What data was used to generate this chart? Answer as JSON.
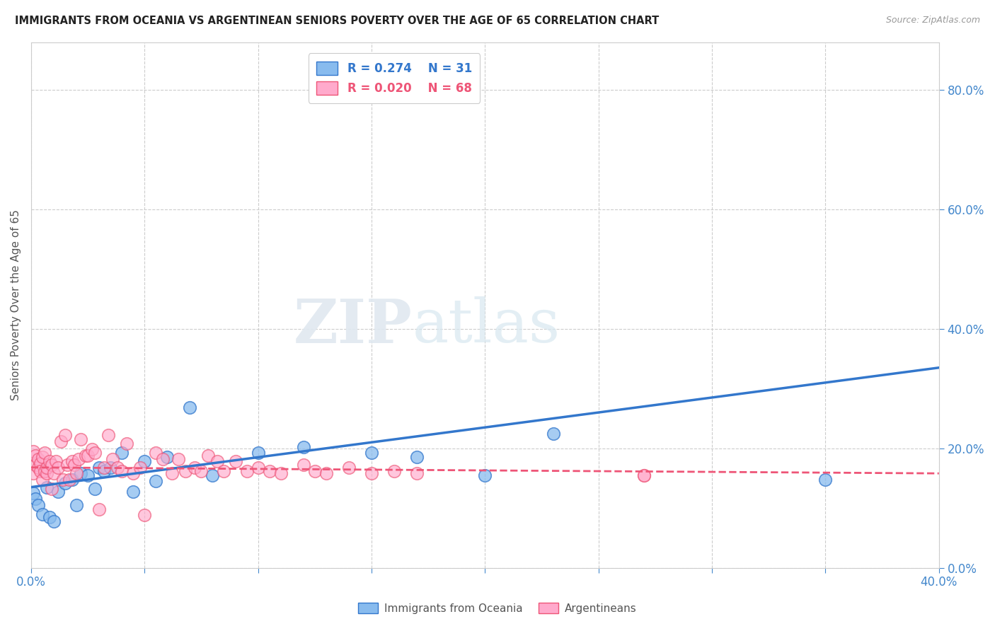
{
  "title": "IMMIGRANTS FROM OCEANIA VS ARGENTINEAN SENIORS POVERTY OVER THE AGE OF 65 CORRELATION CHART",
  "source": "Source: ZipAtlas.com",
  "ylabel": "Seniors Poverty Over the Age of 65",
  "xlim": [
    0.0,
    0.4
  ],
  "ylim": [
    0.0,
    0.88
  ],
  "yticks": [
    0.0,
    0.2,
    0.4,
    0.6,
    0.8
  ],
  "r1": 0.274,
  "n1": 31,
  "r2": 0.02,
  "n2": 68,
  "color_blue": "#88bbee",
  "color_pink": "#ffaacc",
  "color_blue_line": "#3377cc",
  "color_pink_line": "#ee5577",
  "watermark_zip": "ZIP",
  "watermark_atlas": "atlas",
  "background_color": "#ffffff",
  "blue_x": [
    0.001,
    0.002,
    0.003,
    0.005,
    0.007,
    0.008,
    0.01,
    0.012,
    0.015,
    0.018,
    0.02,
    0.022,
    0.025,
    0.028,
    0.03,
    0.032,
    0.035,
    0.04,
    0.045,
    0.05,
    0.055,
    0.06,
    0.07,
    0.08,
    0.1,
    0.12,
    0.15,
    0.17,
    0.2,
    0.23,
    0.35
  ],
  "blue_y": [
    0.125,
    0.115,
    0.105,
    0.09,
    0.135,
    0.085,
    0.078,
    0.128,
    0.142,
    0.148,
    0.105,
    0.158,
    0.155,
    0.132,
    0.168,
    0.162,
    0.168,
    0.192,
    0.128,
    0.178,
    0.145,
    0.185,
    0.268,
    0.155,
    0.192,
    0.202,
    0.192,
    0.185,
    0.155,
    0.225,
    0.148
  ],
  "pink_x": [
    0.001,
    0.001,
    0.002,
    0.002,
    0.003,
    0.003,
    0.004,
    0.004,
    0.005,
    0.005,
    0.006,
    0.006,
    0.007,
    0.007,
    0.008,
    0.009,
    0.009,
    0.01,
    0.011,
    0.012,
    0.013,
    0.014,
    0.015,
    0.016,
    0.017,
    0.018,
    0.019,
    0.02,
    0.021,
    0.022,
    0.024,
    0.025,
    0.027,
    0.028,
    0.03,
    0.032,
    0.034,
    0.036,
    0.038,
    0.04,
    0.042,
    0.045,
    0.048,
    0.05,
    0.055,
    0.058,
    0.062,
    0.065,
    0.068,
    0.072,
    0.075,
    0.078,
    0.082,
    0.085,
    0.09,
    0.095,
    0.1,
    0.105,
    0.11,
    0.12,
    0.125,
    0.13,
    0.14,
    0.15,
    0.16,
    0.17,
    0.27,
    0.27
  ],
  "pink_y": [
    0.158,
    0.195,
    0.172,
    0.188,
    0.168,
    0.182,
    0.175,
    0.162,
    0.185,
    0.148,
    0.192,
    0.162,
    0.158,
    0.168,
    0.178,
    0.132,
    0.172,
    0.158,
    0.178,
    0.168,
    0.212,
    0.148,
    0.222,
    0.172,
    0.148,
    0.178,
    0.172,
    0.158,
    0.182,
    0.215,
    0.188,
    0.188,
    0.198,
    0.192,
    0.098,
    0.168,
    0.222,
    0.182,
    0.168,
    0.162,
    0.208,
    0.158,
    0.168,
    0.088,
    0.192,
    0.182,
    0.158,
    0.182,
    0.162,
    0.168,
    0.162,
    0.188,
    0.178,
    0.162,
    0.178,
    0.162,
    0.168,
    0.162,
    0.158,
    0.172,
    0.162,
    0.158,
    0.168,
    0.158,
    0.162,
    0.158,
    0.155,
    0.155
  ],
  "blue_line_x0": 0.0,
  "blue_line_y0": 0.135,
  "blue_line_x1": 0.4,
  "blue_line_y1": 0.335,
  "pink_line_x0": 0.0,
  "pink_line_y0": 0.168,
  "pink_line_x1": 0.4,
  "pink_line_y1": 0.158
}
